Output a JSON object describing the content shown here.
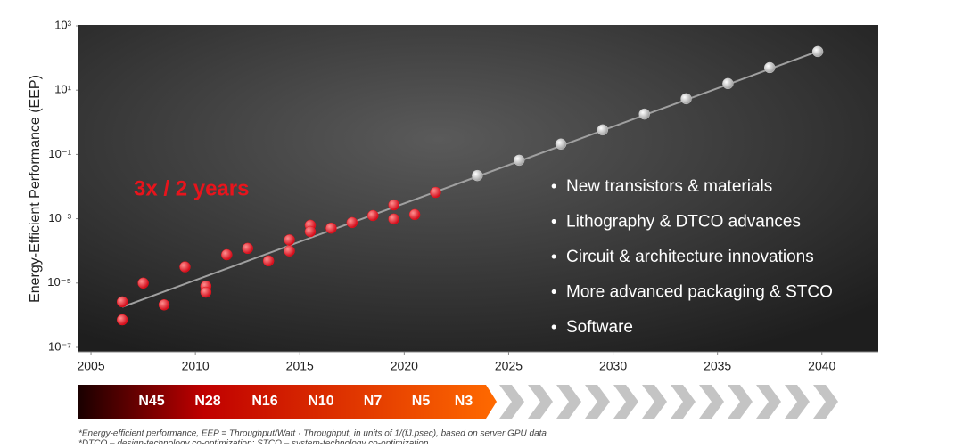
{
  "chart_data": {
    "type": "scatter",
    "y_label": "Energy-Efficient Performance (EEP)",
    "annotation": "3x / 2 years",
    "bullets": [
      "New transistors & materials",
      "Lithography & DTCO advances",
      "Circuit & architecture innovations",
      "More advanced packaging & STCO",
      "Software"
    ],
    "nodes": [
      "N45",
      "N28",
      "N16",
      "N10",
      "N7",
      "N5",
      "N3"
    ],
    "footnotes": [
      "*Energy-efficient performance, EEP = Throughput/Watt · Throughput, in units of 1/(fJ.psec), based on server GPU data",
      "*DTCO – design-technology co-optimization; STCO – system-technology co-optimization"
    ],
    "y_log": true,
    "xlim": [
      2004.4,
      2042.7
    ],
    "ylim": [
      1e-07,
      1000
    ],
    "xticks": [
      2005,
      2010,
      2015,
      2020,
      2025,
      2030,
      2035,
      2040
    ],
    "yticks": [
      {
        "value": 1000,
        "label": "10³"
      },
      {
        "value": 10,
        "label": "10¹"
      },
      {
        "value": 0.1,
        "label": "10⁻¹"
      },
      {
        "value": 0.001,
        "label": "10⁻³"
      },
      {
        "value": 1e-05,
        "label": "10⁻⁵"
      },
      {
        "value": 1e-07,
        "label": "10⁻⁷"
      }
    ],
    "trend": {
      "color": "#a0a0a0",
      "x": [
        2006.5,
        2039.8
      ],
      "values": [
        1.8e-06,
        160
      ]
    },
    "series": [
      {
        "color": "#e8141c",
        "x": [
          2006.5,
          2006.5,
          2007.5,
          2008.5,
          2009.5,
          2010.5,
          2010.5,
          2011.5,
          2012.5,
          2013.5,
          2014.5,
          2014.5,
          2015.5,
          2015.5,
          2016.5,
          2017.5,
          2018.5,
          2019.5,
          2019.5,
          2020.5,
          2021.5
        ],
        "values": [
          2.6e-06,
          7.2e-07,
          1e-05,
          2.1e-06,
          3.2e-05,
          8e-06,
          5.2e-06,
          7.6e-05,
          0.00012,
          4.9e-05,
          0.00022,
          0.0001,
          0.00063,
          0.0004,
          0.00051,
          0.00076,
          0.00126,
          0.0027,
          0.00098,
          0.00135,
          0.0066
        ]
      },
      {
        "color": "#c8c8c8",
        "x": [
          2023.5,
          2025.5,
          2027.5,
          2029.5,
          2031.5,
          2033.5,
          2035.5,
          2037.5,
          2039.8
        ],
        "values": [
          0.022,
          0.066,
          0.21,
          0.58,
          1.8,
          5.4,
          16,
          50,
          158
        ]
      }
    ]
  }
}
